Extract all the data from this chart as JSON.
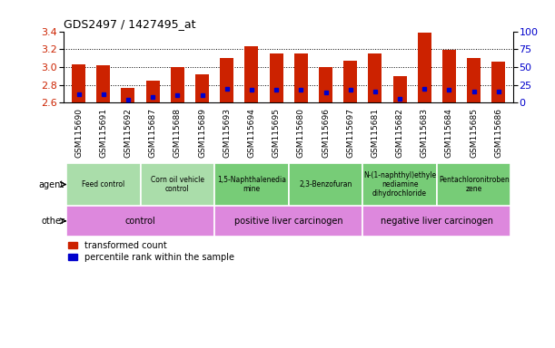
{
  "title": "GDS2497 / 1427495_at",
  "samples": [
    "GSM115690",
    "GSM115691",
    "GSM115692",
    "GSM115687",
    "GSM115688",
    "GSM115689",
    "GSM115693",
    "GSM115694",
    "GSM115695",
    "GSM115680",
    "GSM115696",
    "GSM115697",
    "GSM115681",
    "GSM115682",
    "GSM115683",
    "GSM115684",
    "GSM115685",
    "GSM115686"
  ],
  "transformed_count": [
    3.03,
    3.02,
    2.77,
    2.85,
    3.0,
    2.92,
    3.1,
    3.23,
    3.15,
    3.15,
    3.0,
    3.07,
    3.15,
    2.9,
    3.39,
    3.19,
    3.1,
    3.06
  ],
  "percentile_rank": [
    12,
    12,
    4,
    8,
    10,
    10,
    20,
    18,
    18,
    18,
    14,
    18,
    16,
    6,
    20,
    18,
    16,
    16
  ],
  "bar_color": "#cc2200",
  "dot_color": "#0000cc",
  "ymin": 2.6,
  "ymax": 3.4,
  "yticks": [
    2.6,
    2.8,
    3.0,
    3.2,
    3.4
  ],
  "y2ticks": [
    0,
    25,
    50,
    75,
    100
  ],
  "agent_groups": [
    {
      "label": "Feed control",
      "start": 0,
      "end": 3,
      "color": "#aaddaa"
    },
    {
      "label": "Corn oil vehicle\ncontrol",
      "start": 3,
      "end": 6,
      "color": "#aaddaa"
    },
    {
      "label": "1,5-Naphthalenedia\nmine",
      "start": 6,
      "end": 9,
      "color": "#77cc77"
    },
    {
      "label": "2,3-Benzofuran",
      "start": 9,
      "end": 12,
      "color": "#77cc77"
    },
    {
      "label": "N-(1-naphthyl)ethyle\nnediamine\ndihydrochloride",
      "start": 12,
      "end": 15,
      "color": "#77cc77"
    },
    {
      "label": "Pentachloronitroben\nzene",
      "start": 15,
      "end": 18,
      "color": "#77cc77"
    }
  ],
  "other_groups": [
    {
      "label": "control",
      "start": 0,
      "end": 6,
      "color": "#dd88dd"
    },
    {
      "label": "positive liver carcinogen",
      "start": 6,
      "end": 12,
      "color": "#dd88dd"
    },
    {
      "label": "negative liver carcinogen",
      "start": 12,
      "end": 18,
      "color": "#dd88dd"
    }
  ],
  "agent_label": "agent",
  "other_label": "other",
  "legend_red": "transformed count",
  "legend_blue": "percentile rank within the sample",
  "bg_color": "#ffffff",
  "plot_bg": "#ffffff",
  "tick_label_color_left": "#cc2200",
  "tick_label_color_right": "#0000cc",
  "xtick_bg": "#dddddd"
}
